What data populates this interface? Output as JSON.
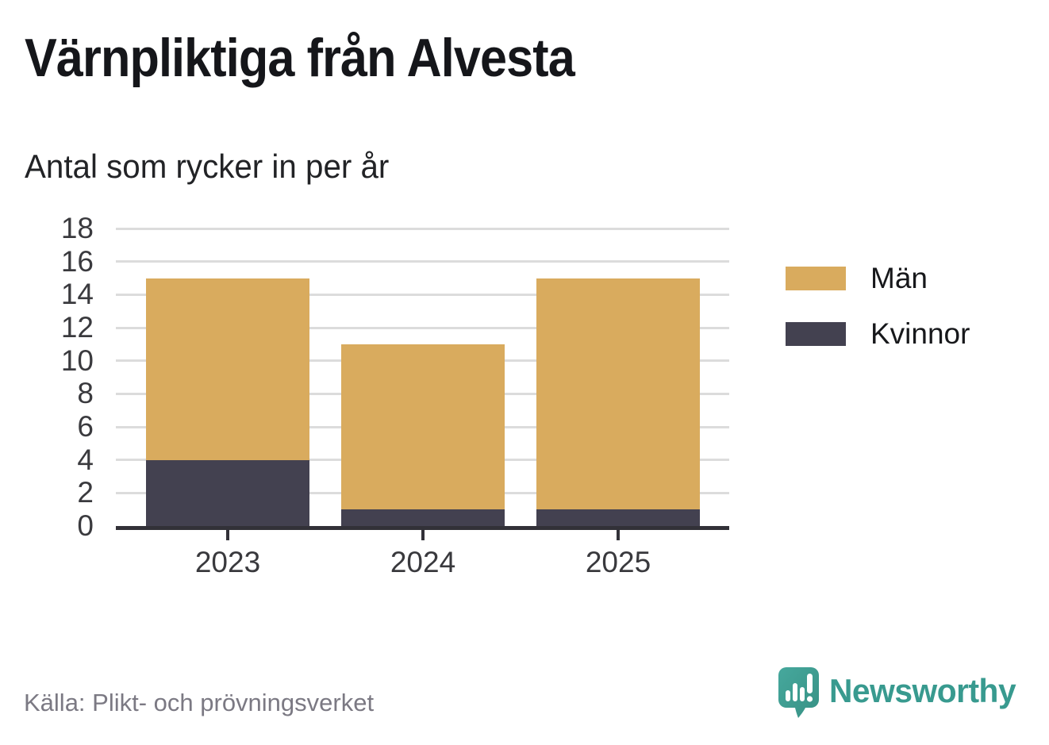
{
  "header": {
    "title": "Värnpliktiga från Alvesta",
    "subtitle": "Antal som rycker in per år"
  },
  "chart_data": {
    "type": "bar",
    "stacked": true,
    "title": "Värnpliktiga från Alvesta",
    "subtitle": "Antal som rycker in per år",
    "categories": [
      "2023",
      "2024",
      "2025"
    ],
    "series": [
      {
        "name": "Män",
        "color": "#d9ab5e",
        "values": [
          11,
          10,
          14
        ]
      },
      {
        "name": "Kvinnor",
        "color": "#434150",
        "values": [
          4,
          1,
          1
        ]
      }
    ],
    "totals": [
      15,
      11,
      15
    ],
    "xlabel": "",
    "ylabel": "",
    "ylim": [
      0,
      18
    ],
    "yticks": [
      0,
      2,
      4,
      6,
      8,
      10,
      12,
      14,
      16,
      18
    ],
    "grid": "horizontal",
    "legend_position": "right"
  },
  "footer": {
    "source": "Källa: Plikt- och prövningsverket",
    "brand": "Newsworthy"
  },
  "colors": {
    "men": "#d9ab5e",
    "women": "#434150",
    "axis": "#323138",
    "grid": "#dcdcdc",
    "teal": "#3a9b90",
    "muted_text": "#7b7983"
  }
}
